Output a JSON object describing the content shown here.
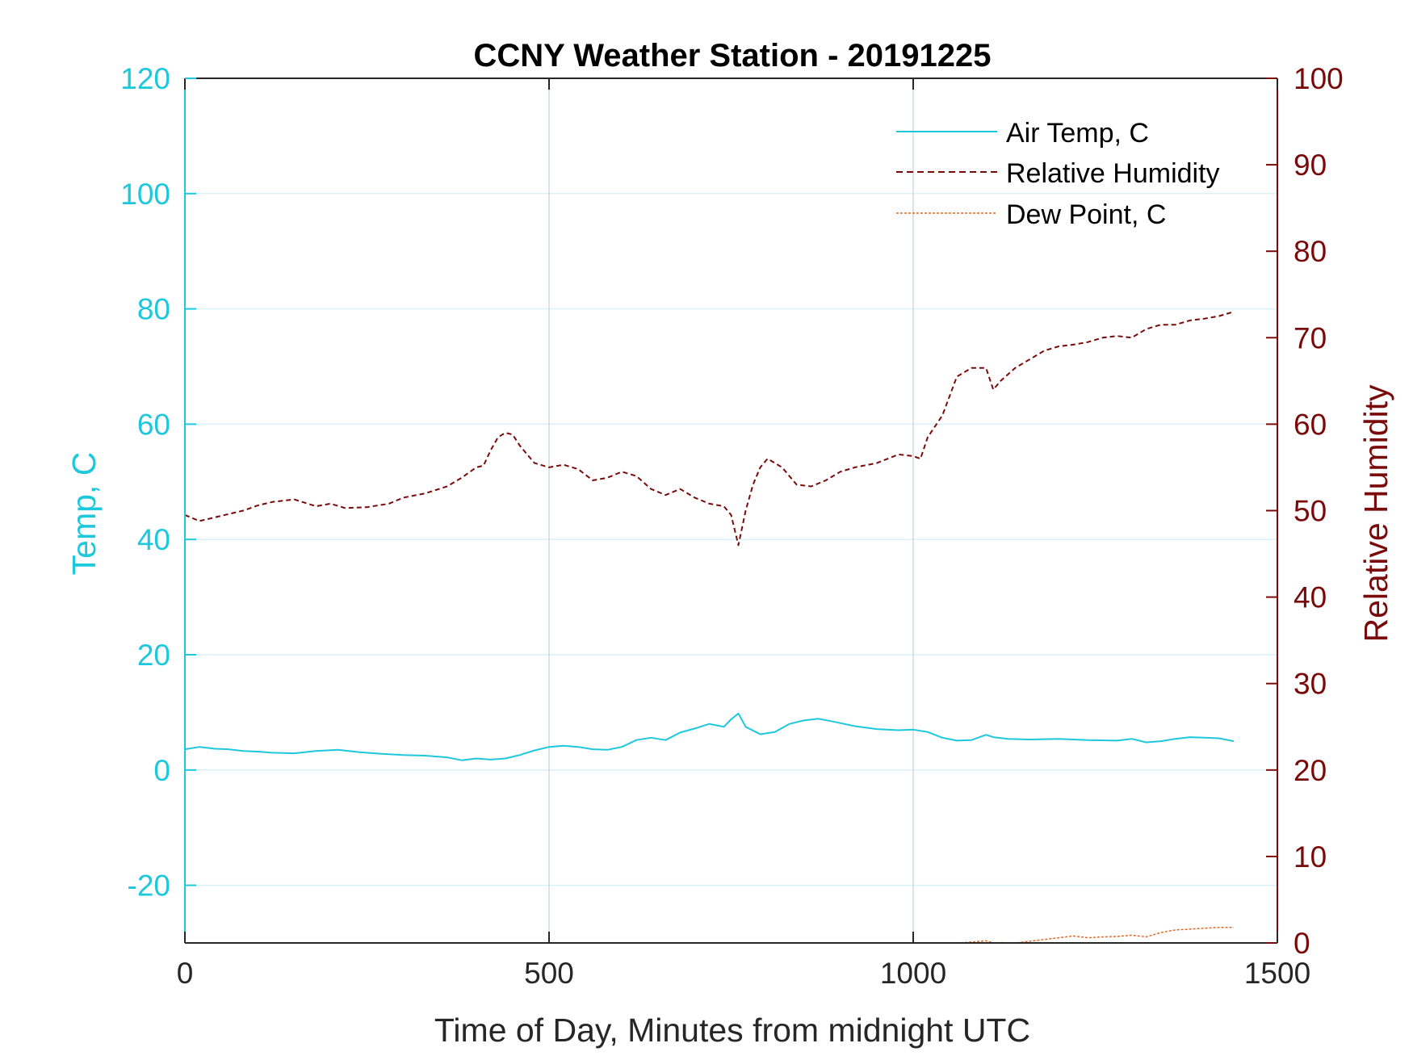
{
  "colors": {
    "temp": "#1ec8dc",
    "humidity": "#7a0a0a",
    "dew_point": "#e06a2a",
    "grid_v": "#d2d8de",
    "grid_h": "#d8f2f8",
    "axis": "#262626"
  },
  "chart_data": {
    "type": "line",
    "title": "CCNY Weather Station - 20191225",
    "xlabel": "Time of Day, Minutes from midnight UTC",
    "ylabel_left": "Temp, C",
    "ylabel_right": "Relative Humidity",
    "xlim": [
      0,
      1500
    ],
    "ylim_left": [
      -30,
      120
    ],
    "ylim_right": [
      0,
      100
    ],
    "xticks": [
      0,
      500,
      1000,
      1500
    ],
    "xtick_labels": [
      "0",
      "500",
      "1000",
      "1500"
    ],
    "yticks_left": [
      -20,
      0,
      20,
      40,
      60,
      80,
      100,
      120
    ],
    "ytick_labels_left": [
      "-20",
      "0",
      "20",
      "40",
      "60",
      "80",
      "100",
      "120"
    ],
    "yticks_right": [
      0,
      10,
      20,
      30,
      40,
      50,
      60,
      70,
      80,
      90,
      100
    ],
    "ytick_labels_right": [
      "0",
      "10",
      "20",
      "30",
      "40",
      "50",
      "60",
      "70",
      "80",
      "90",
      "100"
    ],
    "grid": true,
    "legend_position": "top-right",
    "series": [
      {
        "name": "Air Temp, C",
        "axis": "left",
        "style": "solid",
        "x": [
          0,
          20,
          40,
          60,
          80,
          100,
          120,
          150,
          180,
          210,
          240,
          270,
          300,
          330,
          360,
          380,
          400,
          420,
          440,
          460,
          480,
          500,
          520,
          540,
          560,
          580,
          600,
          620,
          640,
          660,
          680,
          700,
          720,
          740,
          750,
          760,
          770,
          790,
          810,
          830,
          850,
          870,
          890,
          920,
          950,
          980,
          1000,
          1020,
          1040,
          1060,
          1080,
          1100,
          1110,
          1130,
          1160,
          1200,
          1240,
          1280,
          1300,
          1320,
          1340,
          1360,
          1380,
          1400,
          1420,
          1440
        ],
        "values": [
          3.6,
          4.0,
          3.7,
          3.6,
          3.3,
          3.2,
          3.0,
          2.9,
          3.3,
          3.5,
          3.1,
          2.8,
          2.6,
          2.5,
          2.2,
          1.7,
          2.0,
          1.8,
          2.0,
          2.6,
          3.4,
          4.0,
          4.2,
          4.0,
          3.6,
          3.5,
          4.0,
          5.2,
          5.6,
          5.2,
          6.5,
          7.2,
          8.0,
          7.5,
          8.8,
          9.8,
          7.5,
          6.2,
          6.6,
          8.0,
          8.6,
          8.9,
          8.4,
          7.6,
          7.1,
          6.9,
          7.0,
          6.6,
          5.6,
          5.1,
          5.2,
          6.1,
          5.7,
          5.4,
          5.3,
          5.4,
          5.2,
          5.1,
          5.4,
          4.8,
          5.0,
          5.4,
          5.7,
          5.6,
          5.5,
          5.0
        ]
      },
      {
        "name": "Relative Humidity",
        "axis": "right",
        "style": "dashed",
        "x": [
          0,
          20,
          40,
          60,
          80,
          100,
          120,
          150,
          180,
          200,
          220,
          250,
          280,
          300,
          330,
          360,
          380,
          400,
          410,
          420,
          430,
          440,
          450,
          460,
          470,
          480,
          500,
          520,
          540,
          560,
          580,
          600,
          620,
          640,
          660,
          680,
          700,
          720,
          740,
          750,
          760,
          770,
          780,
          790,
          800,
          820,
          840,
          860,
          880,
          900,
          920,
          950,
          980,
          1000,
          1010,
          1020,
          1040,
          1060,
          1080,
          1100,
          1110,
          1120,
          1140,
          1160,
          1180,
          1200,
          1220,
          1240,
          1260,
          1280,
          1300,
          1320,
          1340,
          1360,
          1380,
          1400,
          1420,
          1440
        ],
        "values": [
          49.5,
          48.8,
          49.2,
          49.6,
          50.0,
          50.6,
          51.0,
          51.3,
          50.5,
          50.8,
          50.3,
          50.4,
          50.8,
          51.5,
          52.0,
          52.8,
          53.8,
          55.0,
          55.2,
          57.0,
          58.5,
          59.0,
          58.8,
          57.5,
          56.5,
          55.5,
          55.0,
          55.3,
          54.8,
          53.5,
          53.8,
          54.5,
          54.0,
          52.5,
          51.8,
          52.5,
          51.5,
          50.8,
          50.5,
          49.5,
          46.0,
          50.0,
          53.0,
          55.0,
          56.0,
          55.0,
          53.0,
          52.8,
          53.5,
          54.5,
          55.0,
          55.5,
          56.5,
          56.3,
          56.0,
          58.5,
          61.0,
          65.5,
          66.5,
          66.5,
          64.0,
          65.0,
          66.5,
          67.5,
          68.5,
          69.0,
          69.2,
          69.5,
          70.0,
          70.2,
          70.0,
          71.0,
          71.5,
          71.5,
          72.0,
          72.2,
          72.5,
          73.0
        ]
      },
      {
        "name": "Dew Point, C",
        "axis": "right",
        "style": "dotted",
        "x": [
          1060,
          1080,
          1100,
          1110,
          1120,
          1140,
          1160,
          1180,
          1200,
          1220,
          1240,
          1260,
          1280,
          1300,
          1320,
          1340,
          1360,
          1380,
          1400,
          1420,
          1440
        ],
        "values": [
          0.0,
          0.1,
          0.25,
          0.0,
          0.05,
          0.0,
          0.2,
          0.4,
          0.6,
          0.8,
          0.6,
          0.7,
          0.75,
          0.9,
          0.7,
          1.2,
          1.5,
          1.6,
          1.7,
          1.8,
          1.8
        ]
      }
    ]
  }
}
